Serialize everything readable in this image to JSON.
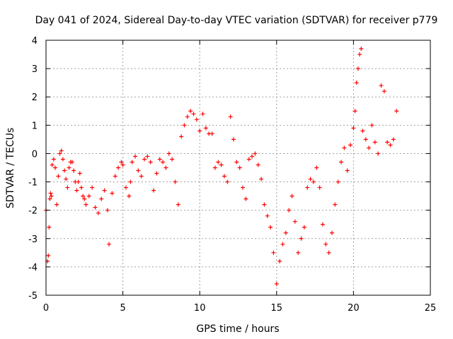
{
  "chart_data": {
    "type": "scatter",
    "title": "Day 041 of 2024, Sidereal Day-to-day VTEC variation (SDTVAR) for receiver p779",
    "xlabel": "GPS time / hours",
    "ylabel": "SDTVAR / TECUs",
    "xlim": [
      0,
      25
    ],
    "ylim": [
      -5,
      4
    ],
    "xticks": [
      0,
      5,
      10,
      15,
      20,
      25
    ],
    "yticks": [
      -5,
      -4,
      -3,
      -2,
      -1,
      0,
      1,
      2,
      3,
      4
    ],
    "grid": true,
    "marker": "plus",
    "series": [
      {
        "name": "SDTVAR p779",
        "color": "#ff0000",
        "x": [
          0.0,
          0.1,
          0.15,
          0.2,
          0.25,
          0.3,
          0.35,
          0.4,
          0.5,
          0.6,
          0.7,
          0.8,
          0.9,
          1.0,
          1.1,
          1.2,
          1.3,
          1.4,
          1.5,
          1.6,
          1.7,
          1.8,
          1.9,
          2.0,
          2.1,
          2.2,
          2.3,
          2.4,
          2.5,
          2.6,
          2.8,
          3.0,
          3.2,
          3.4,
          3.6,
          3.8,
          4.0,
          4.1,
          4.3,
          4.5,
          4.7,
          4.9,
          5.0,
          5.2,
          5.4,
          5.5,
          5.6,
          5.8,
          6.0,
          6.2,
          6.4,
          6.6,
          6.8,
          7.0,
          7.2,
          7.4,
          7.6,
          7.8,
          8.0,
          8.2,
          8.4,
          8.6,
          8.8,
          9.0,
          9.2,
          9.4,
          9.6,
          9.8,
          10.0,
          10.2,
          10.4,
          10.6,
          10.8,
          11.0,
          11.2,
          11.4,
          11.6,
          11.8,
          12.0,
          12.2,
          12.4,
          12.6,
          12.8,
          13.0,
          13.2,
          13.4,
          13.6,
          13.8,
          14.0,
          14.2,
          14.4,
          14.6,
          14.8,
          15.0,
          15.2,
          15.4,
          15.6,
          15.8,
          16.0,
          16.2,
          16.4,
          16.6,
          16.8,
          17.0,
          17.2,
          17.4,
          17.6,
          17.8,
          18.0,
          18.2,
          18.4,
          18.6,
          18.8,
          19.0,
          19.2,
          19.4,
          19.6,
          19.8,
          20.0,
          20.1,
          20.2,
          20.3,
          20.4,
          20.5,
          20.6,
          20.8,
          21.0,
          21.2,
          21.4,
          21.6,
          21.8,
          22.0,
          22.2,
          22.4,
          22.6,
          22.8
        ],
        "y": [
          -2.0,
          -3.8,
          -3.6,
          -2.6,
          -1.6,
          -1.4,
          -1.5,
          -0.4,
          -0.2,
          -0.5,
          -1.8,
          -0.8,
          0.0,
          0.1,
          -0.2,
          -0.6,
          -0.9,
          -1.2,
          -0.5,
          -0.3,
          -0.3,
          -0.6,
          -1.0,
          -1.3,
          -1.0,
          -0.7,
          -1.2,
          -1.5,
          -1.6,
          -1.8,
          -1.5,
          -1.2,
          -1.9,
          -2.1,
          -1.6,
          -1.3,
          -2.0,
          -3.2,
          -1.4,
          -0.8,
          -0.5,
          -0.3,
          -0.4,
          -1.2,
          -1.5,
          -1.0,
          -0.3,
          -0.1,
          -0.6,
          -0.8,
          -0.2,
          -0.1,
          -0.3,
          -1.3,
          -0.7,
          -0.2,
          -0.3,
          -0.5,
          0.0,
          -0.2,
          -1.0,
          -1.8,
          0.6,
          1.0,
          1.3,
          1.5,
          1.4,
          1.2,
          0.8,
          1.4,
          0.9,
          0.7,
          0.7,
          -0.5,
          -0.3,
          -0.4,
          -0.8,
          -1.0,
          1.3,
          0.5,
          -0.3,
          -0.5,
          -1.2,
          -1.6,
          -0.2,
          -0.1,
          0.0,
          -0.4,
          -0.9,
          -1.8,
          -2.2,
          -2.6,
          -3.5,
          -4.6,
          -3.8,
          -3.2,
          -2.8,
          -2.0,
          -1.5,
          -2.4,
          -3.5,
          -3.0,
          -2.6,
          -1.2,
          -0.9,
          -1.0,
          -0.5,
          -1.2,
          -2.5,
          -3.2,
          -3.5,
          -2.8,
          -1.8,
          -1.0,
          -0.3,
          0.2,
          -0.6,
          0.3,
          0.9,
          1.5,
          2.5,
          3.0,
          3.5,
          3.7,
          0.8,
          0.5,
          0.2,
          1.0,
          0.4,
          0.0,
          2.4,
          2.2,
          0.4,
          0.3,
          0.5,
          1.5
        ]
      }
    ]
  }
}
